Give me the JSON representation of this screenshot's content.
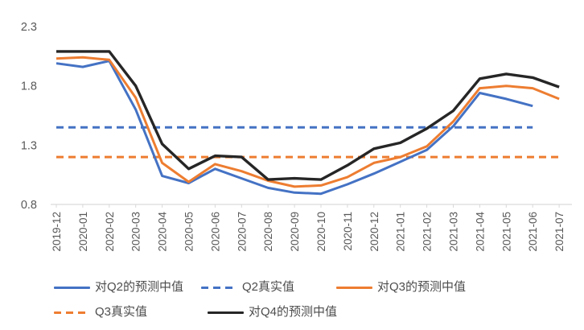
{
  "window": {
    "background": "#ffffff"
  },
  "chart_data": {
    "type": "line",
    "title": "",
    "xlabel": "",
    "ylabel": "",
    "grid": false,
    "legend_position": "bottom",
    "categories": [
      "2019-12",
      "2020-01",
      "2020-02",
      "2020-03",
      "2020-04",
      "2020-05",
      "2020-06",
      "2020-07",
      "2020-08",
      "2020-09",
      "2020-10",
      "2020-11",
      "2020-12",
      "2021-01",
      "2021-02",
      "2021-03",
      "2021-04",
      "2021-05",
      "2021-06",
      "2021-07"
    ],
    "series": [
      {
        "key": "q2-forecast-median",
        "name": "对Q2的预测中值",
        "color": "#4472C4",
        "line_style": "solid",
        "values": [
          1.99,
          1.96,
          2.01,
          1.6,
          1.04,
          0.98,
          1.1,
          1.02,
          0.94,
          0.9,
          0.89,
          0.97,
          1.06,
          1.16,
          1.26,
          1.46,
          1.74,
          1.69,
          1.63,
          null
        ]
      },
      {
        "key": "q2-actual",
        "name": "Q2真实值",
        "color": "#4472C4",
        "line_style": "dashed",
        "values": [
          1.45,
          1.45,
          1.45,
          1.45,
          1.45,
          1.45,
          1.45,
          1.45,
          1.45,
          1.45,
          1.45,
          1.45,
          1.45,
          1.45,
          1.45,
          1.45,
          1.45,
          1.45,
          1.45,
          null
        ]
      },
      {
        "key": "q3-forecast-median",
        "name": "对Q3的预测中值",
        "color": "#ED7D31",
        "line_style": "solid",
        "values": [
          2.03,
          2.04,
          2.02,
          1.7,
          1.15,
          0.99,
          1.14,
          1.08,
          1.0,
          0.95,
          0.96,
          1.03,
          1.15,
          1.2,
          1.29,
          1.5,
          1.78,
          1.8,
          1.78,
          1.69
        ]
      },
      {
        "key": "q3-actual",
        "name": "Q3真实值",
        "color": "#ED7D31",
        "line_style": "dashed",
        "values": [
          1.2,
          1.2,
          1.2,
          1.2,
          1.2,
          1.2,
          1.2,
          1.2,
          1.2,
          1.2,
          1.2,
          1.2,
          1.2,
          1.2,
          1.2,
          1.2,
          1.2,
          1.2,
          1.2,
          1.2
        ]
      },
      {
        "key": "q4-forecast-median",
        "name": "对Q4的预测中值",
        "color": "#262626",
        "line_style": "solid",
        "values": [
          2.09,
          2.09,
          2.09,
          1.8,
          1.31,
          1.1,
          1.21,
          1.2,
          1.01,
          1.02,
          1.01,
          1.13,
          1.27,
          1.32,
          1.44,
          1.59,
          1.86,
          1.9,
          1.87,
          1.79
        ]
      }
    ],
    "ylim": [
      0.8,
      2.3
    ],
    "yticks": [
      "0.8",
      "1.3",
      "1.8",
      "2.3"
    ],
    "legend_rows": [
      [
        0,
        1,
        2
      ],
      [
        3,
        4
      ]
    ],
    "axis_colors": {
      "label": "#595959",
      "axis_line": "#D9D9D9"
    }
  }
}
